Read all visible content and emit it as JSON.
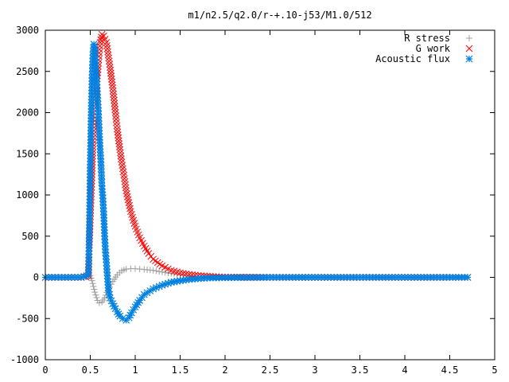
{
  "chart_data": {
    "type": "scatter",
    "title": "m1/n2.5/q2.0/r-+.10-j53/M1.0/512",
    "xlabel": "",
    "ylabel": "",
    "xlim": [
      0,
      5
    ],
    "ylim": [
      -1000,
      3000
    ],
    "x_ticks": [
      "0",
      "0.5",
      "1",
      "1.5",
      "2",
      "2.5",
      "3",
      "3.5",
      "4",
      "4.5",
      "5"
    ],
    "y_ticks": [
      "-1000",
      "-500",
      "0",
      "500",
      "1000",
      "1500",
      "2000",
      "2500",
      "3000"
    ],
    "grid": false,
    "legend_position": "top-right",
    "series": [
      {
        "name": "R stress",
        "marker": "plus",
        "color": "#a0a0a0",
        "points": [
          [
            0.0,
            0
          ],
          [
            0.4,
            0
          ],
          [
            0.45,
            5
          ],
          [
            0.48,
            10
          ],
          [
            0.5,
            20
          ],
          [
            0.52,
            -40
          ],
          [
            0.55,
            -180
          ],
          [
            0.58,
            -280
          ],
          [
            0.6,
            -310
          ],
          [
            0.63,
            -300
          ],
          [
            0.66,
            -250
          ],
          [
            0.7,
            -150
          ],
          [
            0.75,
            -50
          ],
          [
            0.8,
            30
          ],
          [
            0.85,
            80
          ],
          [
            0.9,
            100
          ],
          [
            0.95,
            105
          ],
          [
            1.0,
            105
          ],
          [
            1.05,
            100
          ],
          [
            1.1,
            95
          ],
          [
            1.2,
            85
          ],
          [
            1.3,
            65
          ],
          [
            1.4,
            48
          ],
          [
            1.5,
            32
          ],
          [
            1.6,
            22
          ],
          [
            1.7,
            15
          ],
          [
            1.8,
            9
          ],
          [
            1.9,
            5
          ],
          [
            2.0,
            3
          ],
          [
            2.2,
            1
          ],
          [
            2.5,
            0
          ],
          [
            3.0,
            0
          ],
          [
            3.5,
            0
          ],
          [
            4.0,
            0
          ],
          [
            4.5,
            0
          ],
          [
            4.7,
            0
          ]
        ]
      },
      {
        "name": "G work",
        "marker": "cross",
        "color": "#ff0000",
        "points": [
          [
            0.0,
            0
          ],
          [
            0.4,
            0
          ],
          [
            0.45,
            5
          ],
          [
            0.48,
            20
          ],
          [
            0.49,
            430
          ],
          [
            0.5,
            700
          ],
          [
            0.51,
            1020
          ],
          [
            0.52,
            1330
          ],
          [
            0.53,
            1620
          ],
          [
            0.55,
            1900
          ],
          [
            0.57,
            2300
          ],
          [
            0.59,
            2600
          ],
          [
            0.61,
            2850
          ],
          [
            0.63,
            2950
          ],
          [
            0.65,
            2930
          ],
          [
            0.68,
            2850
          ],
          [
            0.7,
            2700
          ],
          [
            0.72,
            2550
          ],
          [
            0.75,
            2300
          ],
          [
            0.78,
            2000
          ],
          [
            0.8,
            1800
          ],
          [
            0.83,
            1550
          ],
          [
            0.85,
            1400
          ],
          [
            0.88,
            1200
          ],
          [
            0.9,
            1050
          ],
          [
            0.95,
            800
          ],
          [
            1.0,
            620
          ],
          [
            1.05,
            480
          ],
          [
            1.1,
            380
          ],
          [
            1.15,
            290
          ],
          [
            1.2,
            220
          ],
          [
            1.3,
            140
          ],
          [
            1.4,
            85
          ],
          [
            1.5,
            55
          ],
          [
            1.6,
            35
          ],
          [
            1.7,
            22
          ],
          [
            1.8,
            14
          ],
          [
            1.9,
            8
          ],
          [
            2.0,
            4
          ],
          [
            2.2,
            2
          ],
          [
            2.5,
            0
          ],
          [
            3.0,
            0
          ],
          [
            3.5,
            0
          ],
          [
            4.0,
            0
          ],
          [
            4.5,
            0
          ],
          [
            4.7,
            0
          ]
        ]
      },
      {
        "name": "Acoustic flux",
        "marker": "star",
        "color": "#0080e0",
        "points": [
          [
            0.0,
            0
          ],
          [
            0.4,
            0
          ],
          [
            0.46,
            20
          ],
          [
            0.48,
            40
          ],
          [
            0.49,
            560
          ],
          [
            0.5,
            1370
          ],
          [
            0.51,
            1970
          ],
          [
            0.52,
            2420
          ],
          [
            0.53,
            2700
          ],
          [
            0.54,
            2830
          ],
          [
            0.55,
            2800
          ],
          [
            0.56,
            2600
          ],
          [
            0.57,
            2420
          ],
          [
            0.58,
            2220
          ],
          [
            0.59,
            2020
          ],
          [
            0.6,
            1780
          ],
          [
            0.61,
            1560
          ],
          [
            0.62,
            1360
          ],
          [
            0.63,
            1110
          ],
          [
            0.64,
            960
          ],
          [
            0.65,
            760
          ],
          [
            0.66,
            500
          ],
          [
            0.67,
            300
          ],
          [
            0.68,
            180
          ],
          [
            0.69,
            20
          ],
          [
            0.7,
            -130
          ],
          [
            0.72,
            -250
          ],
          [
            0.75,
            -320
          ],
          [
            0.78,
            -380
          ],
          [
            0.8,
            -420
          ],
          [
            0.83,
            -470
          ],
          [
            0.86,
            -500
          ],
          [
            0.9,
            -520
          ],
          [
            0.93,
            -490
          ],
          [
            0.96,
            -430
          ],
          [
            1.0,
            -360
          ],
          [
            1.05,
            -280
          ],
          [
            1.1,
            -210
          ],
          [
            1.2,
            -140
          ],
          [
            1.3,
            -95
          ],
          [
            1.4,
            -60
          ],
          [
            1.5,
            -40
          ],
          [
            1.6,
            -25
          ],
          [
            1.7,
            -15
          ],
          [
            1.8,
            -8
          ],
          [
            2.0,
            -3
          ],
          [
            2.5,
            0
          ],
          [
            3.0,
            0
          ],
          [
            3.5,
            0
          ],
          [
            4.0,
            0
          ],
          [
            4.5,
            0
          ],
          [
            4.7,
            0
          ]
        ]
      }
    ]
  }
}
